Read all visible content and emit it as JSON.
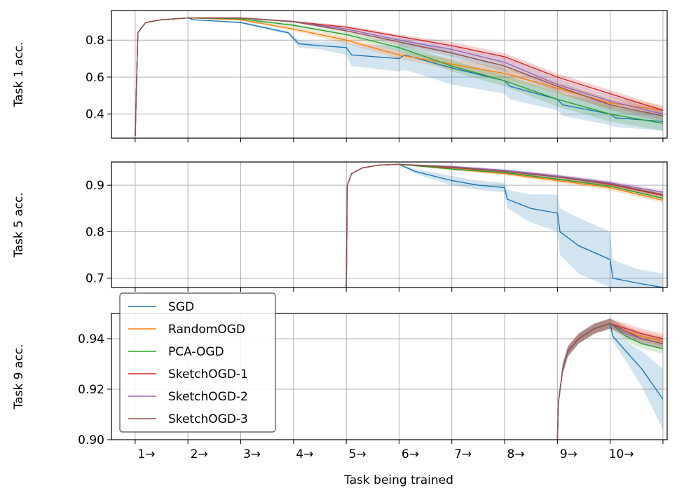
{
  "chart_data": [
    {
      "type": "line",
      "ylabel": "Task 1 acc.",
      "ylim": [
        0.27,
        0.96
      ],
      "yticks": [
        0.4,
        0.6,
        0.8
      ],
      "ytick_labels": [
        "0.4",
        "0.6",
        "0.8"
      ],
      "grid": true,
      "series": [
        {
          "name": "SGD",
          "color": "#1f77b4",
          "x": [
            1,
            1.05,
            1.2,
            1.5,
            2,
            2.1,
            3,
            3.9,
            4.1,
            4.5,
            5,
            5.1,
            6,
            6.1,
            7,
            8,
            8.1,
            9,
            9.1,
            10,
            10.1,
            11
          ],
          "y": [
            0.28,
            0.84,
            0.895,
            0.91,
            0.92,
            0.91,
            0.895,
            0.84,
            0.78,
            0.77,
            0.76,
            0.72,
            0.7,
            0.72,
            0.65,
            0.58,
            0.55,
            0.48,
            0.45,
            0.4,
            0.38,
            0.36
          ],
          "band": [
            0.0,
            0.0,
            0.0,
            0.0,
            0.0,
            0.0,
            0.005,
            0.01,
            0.02,
            0.02,
            0.04,
            0.06,
            0.07,
            0.08,
            0.09,
            0.07,
            0.07,
            0.06,
            0.06,
            0.06,
            0.05,
            0.05
          ]
        },
        {
          "name": "RandomOGD",
          "color": "#ff7f0e",
          "x": [
            1,
            1.05,
            1.2,
            1.5,
            2,
            3,
            4,
            5,
            6,
            7,
            8,
            9,
            10,
            11
          ],
          "y": [
            0.28,
            0.84,
            0.895,
            0.91,
            0.92,
            0.91,
            0.86,
            0.8,
            0.72,
            0.67,
            0.62,
            0.54,
            0.46,
            0.42
          ],
          "band": [
            0,
            0,
            0,
            0,
            0,
            0.005,
            0.01,
            0.02,
            0.02,
            0.03,
            0.03,
            0.03,
            0.03,
            0.03
          ]
        },
        {
          "name": "PCA-OGD",
          "color": "#2ca02c",
          "x": [
            1,
            1.05,
            1.2,
            1.5,
            2,
            3,
            4,
            5,
            6,
            7,
            8,
            9,
            10,
            11
          ],
          "y": [
            0.28,
            0.84,
            0.895,
            0.91,
            0.92,
            0.915,
            0.88,
            0.83,
            0.76,
            0.66,
            0.58,
            0.48,
            0.4,
            0.35
          ],
          "band": [
            0,
            0,
            0,
            0,
            0,
            0.005,
            0.01,
            0.01,
            0.02,
            0.03,
            0.03,
            0.04,
            0.04,
            0.04
          ]
        },
        {
          "name": "SketchOGD-1",
          "color": "#d62728",
          "x": [
            1,
            1.05,
            1.2,
            1.5,
            2,
            3,
            4,
            5,
            6,
            7,
            8,
            9,
            10,
            11
          ],
          "y": [
            0.28,
            0.84,
            0.895,
            0.91,
            0.92,
            0.92,
            0.9,
            0.87,
            0.82,
            0.77,
            0.71,
            0.6,
            0.51,
            0.42
          ],
          "band": [
            0,
            0,
            0,
            0,
            0,
            0.003,
            0.005,
            0.01,
            0.01,
            0.02,
            0.02,
            0.02,
            0.02,
            0.02
          ]
        },
        {
          "name": "SketchOGD-2",
          "color": "#9467bd",
          "x": [
            1,
            1.05,
            1.2,
            1.5,
            2,
            3,
            4,
            5,
            6,
            7,
            8,
            9,
            10,
            11
          ],
          "y": [
            0.28,
            0.84,
            0.895,
            0.91,
            0.92,
            0.92,
            0.9,
            0.86,
            0.8,
            0.75,
            0.68,
            0.56,
            0.47,
            0.4
          ],
          "band": [
            0,
            0,
            0,
            0,
            0,
            0.003,
            0.005,
            0.01,
            0.02,
            0.02,
            0.03,
            0.03,
            0.03,
            0.03
          ]
        },
        {
          "name": "SketchOGD-3",
          "color": "#8c564b",
          "x": [
            1,
            1.05,
            1.2,
            1.5,
            2,
            3,
            4,
            5,
            6,
            7,
            8,
            9,
            10,
            11
          ],
          "y": [
            0.28,
            0.84,
            0.895,
            0.91,
            0.92,
            0.92,
            0.9,
            0.85,
            0.79,
            0.73,
            0.66,
            0.55,
            0.45,
            0.39
          ],
          "band": [
            0,
            0,
            0,
            0,
            0,
            0.003,
            0.005,
            0.01,
            0.02,
            0.02,
            0.03,
            0.03,
            0.03,
            0.03
          ]
        }
      ]
    },
    {
      "type": "line",
      "ylabel": "Task 5 acc.",
      "ylim": [
        0.68,
        0.95
      ],
      "yticks": [
        0.7,
        0.8,
        0.9
      ],
      "ytick_labels": [
        "0.7",
        "0.8",
        "0.9"
      ],
      "grid": true,
      "series": [
        {
          "name": "SGD",
          "color": "#1f77b4",
          "x": [
            5,
            5.02,
            5.1,
            5.3,
            5.6,
            6,
            6.3,
            7,
            7.5,
            8,
            8.05,
            8.5,
            9,
            9.05,
            9.4,
            10,
            10.05,
            10.5,
            11
          ],
          "y": [
            0.68,
            0.9,
            0.925,
            0.937,
            0.943,
            0.945,
            0.93,
            0.91,
            0.9,
            0.895,
            0.87,
            0.85,
            0.84,
            0.8,
            0.77,
            0.74,
            0.7,
            0.69,
            0.68
          ],
          "band": [
            0,
            0,
            0,
            0,
            0,
            0,
            0.005,
            0.01,
            0.01,
            0.01,
            0.02,
            0.03,
            0.04,
            0.05,
            0.06,
            0.06,
            0.04,
            0.03,
            0.03
          ]
        },
        {
          "name": "RandomOGD",
          "color": "#ff7f0e",
          "x": [
            5,
            5.02,
            5.1,
            5.3,
            5.6,
            6,
            7,
            8,
            9,
            10,
            11
          ],
          "y": [
            0.68,
            0.9,
            0.925,
            0.937,
            0.943,
            0.945,
            0.935,
            0.925,
            0.91,
            0.895,
            0.868
          ],
          "band": [
            0,
            0,
            0,
            0,
            0,
            0,
            0.003,
            0.004,
            0.005,
            0.006,
            0.006
          ]
        },
        {
          "name": "PCA-OGD",
          "color": "#2ca02c",
          "x": [
            5,
            5.02,
            5.1,
            5.3,
            5.6,
            6,
            7,
            8,
            9,
            10,
            11
          ],
          "y": [
            0.68,
            0.9,
            0.925,
            0.937,
            0.943,
            0.945,
            0.935,
            0.927,
            0.913,
            0.898,
            0.872
          ],
          "band": [
            0,
            0,
            0,
            0,
            0,
            0,
            0.003,
            0.003,
            0.004,
            0.005,
            0.005
          ]
        },
        {
          "name": "SketchOGD-1",
          "color": "#d62728",
          "x": [
            5,
            5.02,
            5.1,
            5.3,
            5.6,
            6,
            7,
            8,
            9,
            10,
            11
          ],
          "y": [
            0.68,
            0.9,
            0.925,
            0.937,
            0.943,
            0.945,
            0.938,
            0.93,
            0.918,
            0.902,
            0.878
          ],
          "band": [
            0,
            0,
            0,
            0,
            0,
            0,
            0.003,
            0.003,
            0.004,
            0.005,
            0.005
          ]
        },
        {
          "name": "SketchOGD-2",
          "color": "#9467bd",
          "x": [
            5,
            5.02,
            5.1,
            5.3,
            5.6,
            6,
            7,
            8,
            9,
            10,
            11
          ],
          "y": [
            0.68,
            0.9,
            0.925,
            0.937,
            0.943,
            0.945,
            0.94,
            0.932,
            0.92,
            0.905,
            0.885
          ],
          "band": [
            0,
            0,
            0,
            0,
            0,
            0,
            0.003,
            0.003,
            0.004,
            0.005,
            0.005
          ]
        },
        {
          "name": "SketchOGD-3",
          "color": "#8c564b",
          "x": [
            5,
            5.02,
            5.1,
            5.3,
            5.6,
            6,
            7,
            8,
            9,
            10,
            11
          ],
          "y": [
            0.68,
            0.9,
            0.925,
            0.937,
            0.943,
            0.945,
            0.939,
            0.93,
            0.918,
            0.903,
            0.88
          ],
          "band": [
            0,
            0,
            0,
            0,
            0,
            0,
            0.003,
            0.003,
            0.004,
            0.005,
            0.005
          ]
        }
      ]
    },
    {
      "type": "line",
      "ylabel": "Task 9 acc.",
      "ylim": [
        0.9,
        0.95
      ],
      "yticks": [
        0.9,
        0.92,
        0.94
      ],
      "ytick_labels": [
        "0.90",
        "0.92",
        "0.94"
      ],
      "xlabel": "Task being trained",
      "xlim": [
        0.55,
        11.08
      ],
      "xticks": [
        1,
        2,
        3,
        4,
        5,
        6,
        7,
        8,
        9,
        10,
        11
      ],
      "xtick_labels": [
        "1→",
        "2→",
        "3→",
        "4→",
        "5→",
        "6→",
        "7→",
        "8→",
        "9→",
        "10→",
        ""
      ],
      "grid": true,
      "series": [
        {
          "name": "SGD",
          "color": "#1f77b4",
          "x": [
            9,
            9.02,
            9.1,
            9.2,
            9.4,
            9.7,
            10,
            10.05,
            10.3,
            10.6,
            11
          ],
          "y": [
            0.9,
            0.915,
            0.928,
            0.935,
            0.94,
            0.944,
            0.946,
            0.941,
            0.935,
            0.928,
            0.916
          ],
          "band": [
            0,
            0,
            0.002,
            0.002,
            0.002,
            0.002,
            0.002,
            0.002,
            0.004,
            0.007,
            0.012
          ]
        },
        {
          "name": "RandomOGD",
          "color": "#ff7f0e",
          "x": [
            9,
            9.02,
            9.1,
            9.2,
            9.4,
            9.7,
            10,
            10.3,
            10.6,
            11
          ],
          "y": [
            0.9,
            0.915,
            0.928,
            0.935,
            0.94,
            0.944,
            0.946,
            0.943,
            0.941,
            0.939
          ],
          "band": [
            0,
            0,
            0.002,
            0.002,
            0.002,
            0.002,
            0.002,
            0.002,
            0.002,
            0.002
          ]
        },
        {
          "name": "PCA-OGD",
          "color": "#2ca02c",
          "x": [
            9,
            9.02,
            9.1,
            9.2,
            9.4,
            9.7,
            10,
            10.3,
            10.6,
            11
          ],
          "y": [
            0.9,
            0.915,
            0.928,
            0.935,
            0.94,
            0.944,
            0.946,
            0.941,
            0.938,
            0.936
          ],
          "band": [
            0,
            0,
            0.002,
            0.002,
            0.002,
            0.002,
            0.002,
            0.002,
            0.002,
            0.002
          ]
        },
        {
          "name": "SketchOGD-1",
          "color": "#d62728",
          "x": [
            9,
            9.02,
            9.1,
            9.2,
            9.4,
            9.7,
            10,
            10.3,
            10.6,
            11
          ],
          "y": [
            0.9,
            0.915,
            0.928,
            0.935,
            0.94,
            0.944,
            0.946,
            0.944,
            0.942,
            0.94
          ],
          "band": [
            0,
            0,
            0.002,
            0.002,
            0.002,
            0.002,
            0.002,
            0.002,
            0.002,
            0.002
          ]
        },
        {
          "name": "SketchOGD-2",
          "color": "#9467bd",
          "x": [
            9,
            9.02,
            9.1,
            9.2,
            9.4,
            9.7,
            10,
            10.3,
            10.6,
            11
          ],
          "y": [
            0.9,
            0.915,
            0.928,
            0.935,
            0.94,
            0.944,
            0.946,
            0.942,
            0.94,
            0.938
          ],
          "band": [
            0,
            0,
            0.002,
            0.002,
            0.002,
            0.002,
            0.002,
            0.002,
            0.002,
            0.002
          ]
        },
        {
          "name": "SketchOGD-3",
          "color": "#8c564b",
          "x": [
            9,
            9.02,
            9.1,
            9.2,
            9.4,
            9.7,
            10,
            10.3,
            10.6,
            11
          ],
          "y": [
            0.9,
            0.915,
            0.928,
            0.935,
            0.94,
            0.944,
            0.946,
            0.943,
            0.94,
            0.938
          ],
          "band": [
            0,
            0,
            0.002,
            0.002,
            0.002,
            0.002,
            0.002,
            0.002,
            0.002,
            0.002
          ]
        }
      ]
    }
  ],
  "legend": {
    "placement": "lower-left",
    "entries": [
      {
        "label": "SGD",
        "color": "#1f77b4"
      },
      {
        "label": "RandomOGD",
        "color": "#ff7f0e"
      },
      {
        "label": "PCA-OGD",
        "color": "#2ca02c"
      },
      {
        "label": "SketchOGD-1",
        "color": "#d62728"
      },
      {
        "label": "SketchOGD-2",
        "color": "#9467bd"
      },
      {
        "label": "SketchOGD-3",
        "color": "#8c564b"
      }
    ]
  }
}
